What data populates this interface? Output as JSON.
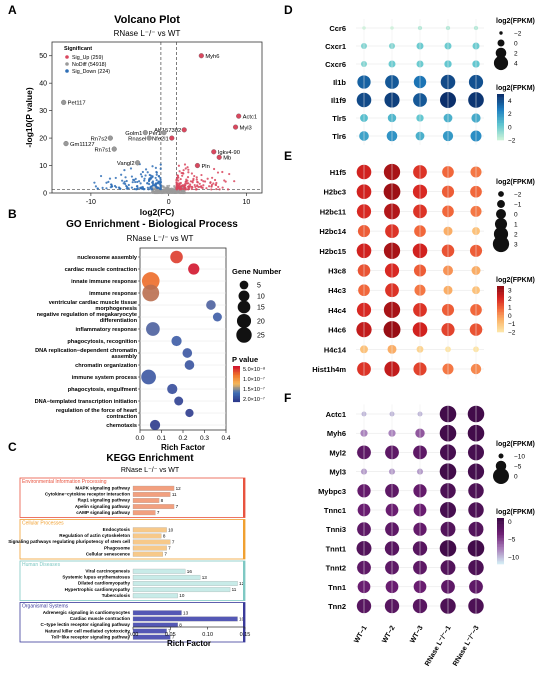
{
  "figure": {
    "panel_letters": [
      "A",
      "B",
      "C",
      "D",
      "E",
      "F"
    ]
  },
  "chart_data": [
    {
      "panel": "A",
      "type": "scatter",
      "title": "Volcano Plot",
      "subtitle": "RNase L⁻/⁻ vs WT",
      "xlabel": "log2(FC)",
      "ylabel": "-log10(P value)",
      "xlim": [
        -15,
        12
      ],
      "ylim": [
        0,
        55
      ],
      "x_ticks": [
        -10,
        0,
        10
      ],
      "y_ticks": [
        0,
        10,
        20,
        30,
        40,
        50
      ],
      "legend_title": "Significant",
      "legend_position": "top-left",
      "series": [
        {
          "name": "Sig_Up (259)",
          "color": "#d9475e"
        },
        {
          "name": "NoDiff (54918)",
          "color": "#9a9a9a"
        },
        {
          "name": "Sig_Down (224)",
          "color": "#2f6fb6"
        }
      ],
      "labeled_points": [
        {
          "label": "Myh6",
          "x": 4.2,
          "y": 50
        },
        {
          "label": "Pet117",
          "x": -13.5,
          "y": 33
        },
        {
          "label": "Actc1",
          "x": 9.0,
          "y": 28
        },
        {
          "label": "Myl3",
          "x": 8.6,
          "y": 24
        },
        {
          "label": "AK157302",
          "x": 2.0,
          "y": 23
        },
        {
          "label": "Golm1",
          "x": -3.0,
          "y": 22
        },
        {
          "label": "Per1",
          "x": -0.6,
          "y": 22
        },
        {
          "label": "Rn7s2",
          "x": -7.5,
          "y": 20
        },
        {
          "label": "Rnasel",
          "x": -2.5,
          "y": 20
        },
        {
          "label": "Nfe2l1",
          "x": 0.4,
          "y": 20
        },
        {
          "label": "Gm11127",
          "x": -13.2,
          "y": 18
        },
        {
          "label": "Rn7s1",
          "x": -7.0,
          "y": 16
        },
        {
          "label": "Igkv4-90",
          "x": 5.8,
          "y": 15
        },
        {
          "label": "Mb",
          "x": 6.5,
          "y": 13
        },
        {
          "label": "Vangl2",
          "x": -4.0,
          "y": 11
        },
        {
          "label": "Pln",
          "x": 3.7,
          "y": 10
        }
      ]
    },
    {
      "panel": "B",
      "type": "scatter",
      "title": "GO Enrichment - Biological Process",
      "subtitle": "RNase L⁻/⁻ vs WT",
      "xlabel": "Rich Factor",
      "xlim": [
        0,
        0.4
      ],
      "x_ticks": [
        0.0,
        0.1,
        0.2,
        0.3,
        0.4
      ],
      "size_legend_title": "Gene Number",
      "size_legend_values": [
        5,
        10,
        15,
        20,
        25
      ],
      "color_legend_title": "P value",
      "color_legend_labels": [
        "5.0×10⁻⁸",
        "1.0×10⁻⁷",
        "1.5×10⁻⁷",
        "2.0×10⁻⁷"
      ],
      "terms": [
        {
          "term": "nucleosome assembly",
          "rich_factor": 0.17,
          "gene_number": 11,
          "p_value": 2e-09
        },
        {
          "term": "cardiac muscle contraction",
          "rich_factor": 0.25,
          "gene_number": 8,
          "p_value": 1e-09
        },
        {
          "term": "innate immune response",
          "rich_factor": 0.05,
          "gene_number": 27,
          "p_value": 5e-09
        },
        {
          "term": "immune response",
          "rich_factor": 0.05,
          "gene_number": 24,
          "p_value": 1e-08
        },
        {
          "term": "ventricular cardiac muscle tissue morphogenesis",
          "rich_factor": 0.33,
          "gene_number": 5,
          "p_value": 3e-08
        },
        {
          "term": "negative regulation of megakaryocyte differentiation",
          "rich_factor": 0.36,
          "gene_number": 4,
          "p_value": 4e-08
        },
        {
          "term": "inflammatory response",
          "rich_factor": 0.06,
          "gene_number": 14,
          "p_value": 3e-08
        },
        {
          "term": "phagocytosis, recognition",
          "rich_factor": 0.17,
          "gene_number": 6,
          "p_value": 4e-08
        },
        {
          "term": "DNA replication−dependent chromatin assembly",
          "rich_factor": 0.22,
          "gene_number": 5,
          "p_value": 5e-08
        },
        {
          "term": "chromatin organization",
          "rich_factor": 0.23,
          "gene_number": 5,
          "p_value": 6e-08
        },
        {
          "term": "immune system process",
          "rich_factor": 0.04,
          "gene_number": 17,
          "p_value": 5e-08
        },
        {
          "term": "phagocytosis, engulfment",
          "rich_factor": 0.15,
          "gene_number": 6,
          "p_value": 8e-08
        },
        {
          "term": "DNA−templated transcription initiation",
          "rich_factor": 0.18,
          "gene_number": 4,
          "p_value": 1.5e-07
        },
        {
          "term": "regulation of the force of heart contraction",
          "rich_factor": 0.23,
          "gene_number": 3,
          "p_value": 1.8e-07
        },
        {
          "term": "chemotaxis",
          "rich_factor": 0.07,
          "gene_number": 6,
          "p_value": 2e-07
        }
      ]
    },
    {
      "panel": "C",
      "type": "bar",
      "title": "KEGG Enrichment",
      "subtitle": "RNase L⁻/⁻ vs WT",
      "xlabel": "Rich Factor",
      "xlim": [
        0,
        0.15
      ],
      "x_ticks": [
        0.0,
        0.05,
        0.1,
        0.15
      ],
      "groups": [
        {
          "name": "Environmental Information Processing",
          "color": "#e8533f",
          "bar_color": "#f2a07f",
          "pathways": [
            {
              "name": "MAPK signaling pathway",
              "rich_factor": 0.055,
              "count": 12
            },
            {
              "name": "Cytokine−cytokine receptor interaction",
              "rich_factor": 0.05,
              "count": 11
            },
            {
              "name": "Rap1 signaling pathway",
              "rich_factor": 0.035,
              "count": 8
            },
            {
              "name": "Apelin signaling pathway",
              "rich_factor": 0.055,
              "count": 7
            },
            {
              "name": "cAMP signaling pathway",
              "rich_factor": 0.03,
              "count": 7
            }
          ]
        },
        {
          "name": "Cellular Processes",
          "color": "#f0a030",
          "bar_color": "#f7c98a",
          "pathways": [
            {
              "name": "Endocytosis",
              "rich_factor": 0.045,
              "count": 10
            },
            {
              "name": "Regulation of actin cytoskeleton",
              "rich_factor": 0.038,
              "count": 8
            },
            {
              "name": "Signaling pathways regulating pluripotency of stem cell",
              "rich_factor": 0.05,
              "count": 7
            },
            {
              "name": "Phagosome",
              "rich_factor": 0.045,
              "count": 7
            },
            {
              "name": "Cellular senescence",
              "rich_factor": 0.04,
              "count": 7
            }
          ]
        },
        {
          "name": "Human Diseases",
          "color": "#7ec8c3",
          "bar_color": "#c8ebe8",
          "pathways": [
            {
              "name": "Viral carcinogenesis",
              "rich_factor": 0.07,
              "count": 16
            },
            {
              "name": "Systemic lupus erythematosus",
              "rich_factor": 0.09,
              "count": 13
            },
            {
              "name": "Dilated cardiomyopathy",
              "rich_factor": 0.14,
              "count": 12
            },
            {
              "name": "Hypertrophic cardiomyopathy",
              "rich_factor": 0.13,
              "count": 11
            },
            {
              "name": "Tuberculosis",
              "rich_factor": 0.06,
              "count": 10
            }
          ]
        },
        {
          "name": "Organismal Systems",
          "color": "#3a3a9a",
          "bar_color": "#5458b5",
          "pathways": [
            {
              "name": "Adrenergic signaling in cardiomyocytes",
              "rich_factor": 0.065,
              "count": 13
            },
            {
              "name": "Cardiac muscle contraction",
              "rich_factor": 0.14,
              "count": 10
            },
            {
              "name": "C−type lectin receptor signaling pathway",
              "rich_factor": 0.06,
              "count": 8
            },
            {
              "name": "Natural killer cell mediated cytotoxicity",
              "rich_factor": 0.045,
              "count": 7
            },
            {
              "name": "Toll−like receptor signaling pathway",
              "rich_factor": 0.05,
              "count": 7
            }
          ]
        }
      ]
    },
    {
      "panel": "D",
      "type": "heatmap",
      "samples": [
        "WT−1",
        "WT−2",
        "WT−3",
        "RNase L⁻/⁻−1",
        "RNase L⁻/⁻−3"
      ],
      "genes": [
        "Ccr6",
        "Cxcr1",
        "Cxcr6",
        "Il1b",
        "Il1f9",
        "Tlr5",
        "Tlr6"
      ],
      "values": [
        [
          -2.0,
          -2.0,
          -1.5,
          -1.5,
          -1.5
        ],
        [
          -0.5,
          -0.5,
          0.0,
          0.0,
          0.0
        ],
        [
          -0.5,
          0.0,
          0.0,
          0.2,
          0.2
        ],
        [
          3.5,
          3.8,
          3.0,
          4.2,
          4.0
        ],
        [
          4.2,
          4.5,
          3.8,
          5.0,
          4.8
        ],
        [
          0.5,
          0.8,
          0.2,
          1.0,
          1.2
        ],
        [
          1.5,
          2.0,
          1.0,
          1.8,
          2.2
        ]
      ],
      "size_legend_title": "log2(FPKM)",
      "size_legend_values": [
        -2,
        0,
        2,
        4
      ],
      "color_legend_title": "log2(FPKM)",
      "color_legend_ticks": [
        -2,
        0,
        2,
        4
      ],
      "color_range": [
        -2,
        5
      ],
      "color_scale": [
        "#c9f2d8",
        "#5dc4cf",
        "#1e7fc1",
        "#0b2f6b"
      ]
    },
    {
      "panel": "E",
      "type": "heatmap",
      "samples": [
        "WT−1",
        "WT−2",
        "WT−3",
        "RNase L⁻/⁻−1",
        "RNase L⁻/⁻−3"
      ],
      "genes": [
        "H1f5",
        "H2bc3",
        "H2bc11",
        "H2bc14",
        "H2bc15",
        "H3c8",
        "H4c3",
        "H4c4",
        "H4c6",
        "H4c14",
        "Hist1h4m"
      ],
      "values": [
        [
          2.2,
          3.0,
          1.8,
          0.8,
          0.5
        ],
        [
          2.2,
          3.2,
          2.0,
          1.0,
          0.8
        ],
        [
          2.0,
          2.8,
          1.8,
          0.8,
          0.5
        ],
        [
          1.0,
          1.8,
          0.8,
          -0.5,
          -1.0
        ],
        [
          2.2,
          3.0,
          2.2,
          1.2,
          1.0
        ],
        [
          1.2,
          2.0,
          1.0,
          0.0,
          -0.5
        ],
        [
          0.8,
          1.8,
          0.5,
          -0.5,
          -1.0
        ],
        [
          2.0,
          3.0,
          1.8,
          1.0,
          0.8
        ],
        [
          2.5,
          3.3,
          2.2,
          1.5,
          1.2
        ],
        [
          -1.0,
          -0.5,
          -1.5,
          -2.0,
          -2.0
        ],
        [
          1.8,
          2.5,
          1.5,
          0.5,
          0.2
        ]
      ],
      "size_legend_title": "log2(FPKM)",
      "size_legend_values": [
        -2,
        -1,
        0,
        1,
        2,
        3
      ],
      "color_legend_title": "log2(FPKM)",
      "color_legend_ticks": [
        3,
        2,
        1,
        0,
        -1,
        -2
      ],
      "color_range": [
        -2,
        3.5
      ],
      "color_scale": [
        "#fde4a6",
        "#fbb46a",
        "#f26a3c",
        "#d52320",
        "#8e0b12"
      ]
    },
    {
      "panel": "F",
      "type": "heatmap",
      "samples": [
        "WT−1",
        "WT−2",
        "WT−3",
        "RNase L⁻/⁻−1",
        "RNase L⁻/⁻−3"
      ],
      "genes": [
        "Actc1",
        "Myh6",
        "Myl2",
        "Myl3",
        "Mybpc3",
        "Tnnc1",
        "Tnni3",
        "Tnnt1",
        "Tnnt2",
        "Tnn1",
        "Tnn2"
      ],
      "values": [
        [
          -10.0,
          -10.0,
          -10.0,
          0.5,
          0.5
        ],
        [
          -8.0,
          -8.0,
          -6.0,
          0.5,
          0.5
        ],
        [
          -2.0,
          -2.0,
          -2.0,
          0.0,
          0.0
        ],
        [
          -9.0,
          -9.0,
          -9.0,
          0.5,
          0.2
        ],
        [
          -2.5,
          -2.0,
          -2.5,
          -0.5,
          -0.5
        ],
        [
          -3.0,
          -3.0,
          -3.0,
          0.0,
          -0.5
        ],
        [
          -2.0,
          -2.0,
          -2.5,
          -1.0,
          -1.0
        ],
        [
          -1.0,
          -1.5,
          -1.5,
          0.5,
          0.5
        ],
        [
          -2.0,
          -2.0,
          -2.0,
          -1.0,
          -0.5
        ],
        [
          -3.0,
          -3.0,
          -3.0,
          -2.0,
          -2.0
        ],
        [
          -1.5,
          -1.5,
          -1.5,
          -0.5,
          -0.5
        ]
      ],
      "size_legend_title": "log2(FPKM)",
      "size_legend_values": [
        -10,
        -5,
        0
      ],
      "color_legend_title": "log2(FPKM)",
      "color_legend_ticks": [
        0,
        -5,
        -10
      ],
      "color_range": [
        -12,
        1
      ],
      "color_scale": [
        "#d3eaf3",
        "#a77bb8",
        "#6d1f74",
        "#3c0a45"
      ]
    }
  ]
}
